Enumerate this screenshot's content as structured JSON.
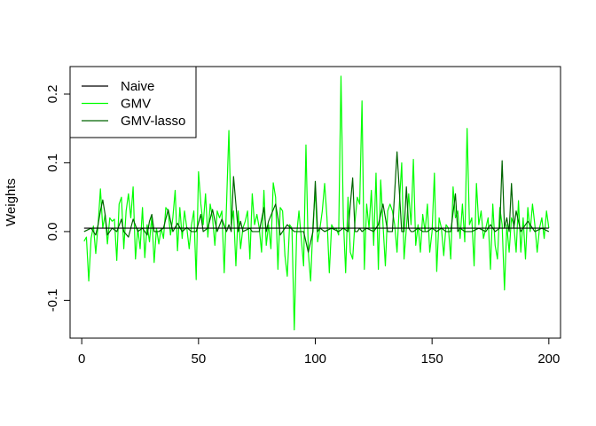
{
  "chart_data": {
    "type": "line",
    "title": "",
    "xlabel": "",
    "ylabel": "Weights",
    "xlim": [
      -5,
      205
    ],
    "ylim": [
      -0.155,
      0.24
    ],
    "xticks": [
      0,
      50,
      100,
      150,
      200
    ],
    "xtick_labels": [
      "0",
      "50",
      "100",
      "150",
      "200"
    ],
    "yticks": [
      -0.1,
      0.0,
      0.1,
      0.2
    ],
    "ytick_labels": [
      "-0.1",
      "0.0",
      "0.1",
      "0.2"
    ],
    "legend_position": "top-left",
    "series": [
      {
        "name": "Naive",
        "color": "#000000",
        "x": [
          1,
          200
        ],
        "values": [
          0.005,
          0.005
        ]
      },
      {
        "name": "GMV",
        "color": "#00ff00",
        "x": [
          1,
          2,
          3,
          4,
          5,
          6,
          7,
          8,
          9,
          10,
          11,
          12,
          13,
          14,
          15,
          16,
          17,
          18,
          19,
          20,
          21,
          22,
          23,
          24,
          25,
          26,
          27,
          28,
          29,
          30,
          31,
          32,
          33,
          34,
          35,
          36,
          37,
          38,
          39,
          40,
          41,
          42,
          43,
          44,
          45,
          46,
          47,
          48,
          49,
          50,
          51,
          52,
          53,
          54,
          55,
          56,
          57,
          58,
          59,
          60,
          61,
          62,
          63,
          64,
          65,
          66,
          67,
          68,
          69,
          70,
          71,
          72,
          73,
          74,
          75,
          76,
          77,
          78,
          79,
          80,
          81,
          82,
          83,
          84,
          85,
          86,
          87,
          88,
          89,
          90,
          91,
          92,
          93,
          94,
          95,
          96,
          97,
          98,
          99,
          100,
          101,
          102,
          103,
          104,
          105,
          106,
          107,
          108,
          109,
          110,
          111,
          112,
          113,
          114,
          115,
          116,
          117,
          118,
          119,
          120,
          121,
          122,
          123,
          124,
          125,
          126,
          127,
          128,
          129,
          130,
          131,
          132,
          133,
          134,
          135,
          136,
          137,
          138,
          139,
          140,
          141,
          142,
          143,
          144,
          145,
          146,
          147,
          148,
          149,
          150,
          151,
          152,
          153,
          154,
          155,
          156,
          157,
          158,
          159,
          160,
          161,
          162,
          163,
          164,
          165,
          166,
          167,
          168,
          169,
          170,
          171,
          172,
          173,
          174,
          175,
          176,
          177,
          178,
          179,
          180,
          181,
          182,
          183,
          184,
          185,
          186,
          187,
          188,
          189,
          190,
          191,
          192,
          193,
          194,
          195,
          196,
          197,
          198,
          199,
          200
        ],
        "values": [
          -0.014,
          -0.008,
          -0.072,
          -0.01,
          0.008,
          -0.032,
          0.01,
          0.062,
          0.005,
          0.025,
          -0.018,
          0.02,
          0.015,
          0.018,
          -0.042,
          0.04,
          0.05,
          -0.025,
          0.03,
          0.055,
          0.02,
          0.065,
          -0.04,
          0.005,
          -0.025,
          0.035,
          -0.038,
          0.01,
          -0.015,
          0.022,
          -0.045,
          0.005,
          -0.018,
          0.005,
          -0.01,
          0.035,
          0.03,
          -0.005,
          0.02,
          0.06,
          -0.028,
          0.035,
          -0.01,
          0.03,
          0.005,
          -0.025,
          0.01,
          0.03,
          -0.07,
          0.087,
          0.04,
          0.01,
          0.055,
          -0.008,
          0.04,
          0.02,
          -0.02,
          0.03,
          0.02,
          0.03,
          -0.06,
          0.04,
          0.147,
          0.01,
          0.03,
          -0.05,
          0.03,
          -0.025,
          0.005,
          0.015,
          0.03,
          -0.04,
          0.055,
          0.01,
          0.025,
          0.005,
          -0.03,
          0.06,
          -0.02,
          0.01,
          -0.025,
          0.071,
          0.05,
          -0.055,
          0.035,
          0.03,
          -0.035,
          -0.065,
          0.01,
          0.005,
          -0.143,
          -0.005,
          0.03,
          -0.01,
          -0.05,
          0.126,
          -0.03,
          -0.072,
          0.01,
          0.06,
          -0.015,
          0.005,
          0.03,
          0.07,
          0.02,
          -0.06,
          0.01,
          0.003,
          0.005,
          -0.005,
          0.226,
          0.02,
          -0.06,
          0.05,
          -0.03,
          -0.04,
          0.015,
          0.05,
          0.04,
          0.19,
          -0.055,
          0.04,
          0.005,
          0.06,
          -0.02,
          0.085,
          -0.055,
          0.075,
          0.01,
          -0.05,
          0.03,
          0.04,
          0.03,
          0.01,
          -0.03,
          0.04,
          0.1,
          -0.04,
          0.005,
          0.055,
          0.01,
          0.105,
          -0.02,
          0.01,
          -0.03,
          0.025,
          0.0,
          0.04,
          -0.03,
          0.0,
          0.085,
          -0.058,
          0.02,
          0.005,
          -0.035,
          0.01,
          0.005,
          -0.04,
          0.065,
          0.02,
          0.03,
          -0.01,
          0.04,
          -0.015,
          0.15,
          0.01,
          0.02,
          -0.05,
          0.07,
          0.01,
          0.03,
          -0.01,
          0.005,
          0.02,
          -0.055,
          0.04,
          -0.02,
          -0.04,
          0.035,
          0.01,
          -0.085,
          0.01,
          -0.03,
          0.02,
          0.01,
          -0.03,
          0.045,
          -0.03,
          0.02,
          -0.04,
          0.035,
          0.0,
          0.04,
          0.01,
          -0.03,
          0.005,
          0.02,
          -0.01,
          0.03,
          0.005
        ]
      },
      {
        "name": "GMV-lasso",
        "color": "#006400",
        "x": [
          1,
          4,
          6,
          7,
          8,
          9,
          10,
          11,
          13,
          15,
          17,
          18,
          20,
          22,
          24,
          26,
          27,
          28,
          29,
          30,
          31,
          33,
          35,
          37,
          39,
          41,
          43,
          45,
          47,
          49,
          51,
          52,
          54,
          56,
          58,
          60,
          62,
          63,
          64,
          65,
          67,
          68,
          69,
          72,
          73,
          76,
          78,
          79,
          80,
          83,
          84,
          85,
          86,
          88,
          91,
          95,
          97,
          99,
          100,
          101,
          102,
          104,
          107,
          110,
          112,
          114,
          116,
          117,
          118,
          119,
          120,
          122,
          125,
          127,
          129,
          131,
          133,
          135,
          137,
          138,
          139,
          140,
          141,
          142,
          144,
          146,
          148,
          150,
          152,
          154,
          156,
          158,
          160,
          161,
          162,
          164,
          167,
          170,
          173,
          175,
          177,
          179,
          180,
          181,
          182,
          183,
          184,
          185,
          186,
          188,
          191,
          194,
          197,
          200
        ],
        "values": [
          0.0,
          0.005,
          -0.005,
          0.01,
          0.03,
          0.046,
          0.025,
          -0.005,
          0.005,
          0.0,
          0.018,
          0.0,
          -0.008,
          0.018,
          0.0,
          0.005,
          0.0,
          -0.005,
          0.015,
          0.025,
          0.0,
          0.0,
          0.005,
          0.032,
          0.0,
          0.012,
          0.0,
          0.006,
          0.0,
          0.0,
          0.025,
          0.0,
          0.005,
          0.032,
          0.0,
          0.018,
          0.0,
          0.01,
          0.0,
          0.08,
          0.0,
          0.015,
          0.0,
          0.005,
          0.0,
          0.0,
          0.035,
          0.0,
          0.015,
          0.04,
          0.02,
          -0.005,
          0.0,
          0.01,
          0.0,
          0.0,
          -0.03,
          0.0,
          0.073,
          0.0,
          0.005,
          0.0,
          0.005,
          0.0,
          0.005,
          0.0,
          0.078,
          0.0,
          0.0,
          0.005,
          0.0,
          0.005,
          0.0,
          0.01,
          0.04,
          0.0,
          0.0,
          0.116,
          0.0,
          0.0,
          0.065,
          0.005,
          0.0,
          0.0,
          0.005,
          0.0,
          0.0,
          0.005,
          0.0,
          0.005,
          0.0,
          0.0,
          0.055,
          0.0,
          0.005,
          0.0,
          0.0,
          0.005,
          0.0,
          0.01,
          0.0,
          0.005,
          0.103,
          0.005,
          0.02,
          0.0,
          0.07,
          0.005,
          0.03,
          0.0,
          0.015,
          0.0,
          0.005,
          0.0
        ]
      }
    ]
  }
}
